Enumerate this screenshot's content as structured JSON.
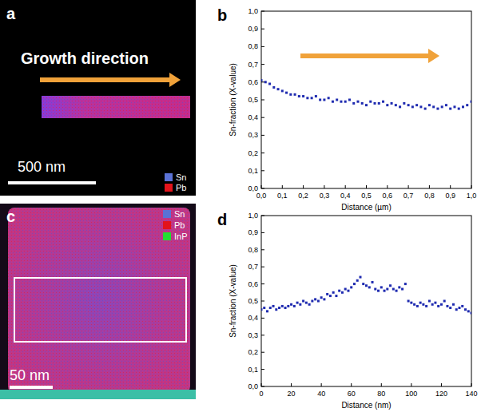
{
  "chart_data": [
    {
      "type": "scatter",
      "panel_label": "b",
      "x_label": "Distance (µm)",
      "y_label": "Sn-fraction (X-value)",
      "color": "#1f2bb0",
      "marker": "square",
      "x": [
        0,
        0.02,
        0.04,
        0.06,
        0.08,
        0.1,
        0.12,
        0.14,
        0.16,
        0.18,
        0.2,
        0.22,
        0.24,
        0.26,
        0.28,
        0.3,
        0.32,
        0.34,
        0.36,
        0.38,
        0.4,
        0.42,
        0.44,
        0.46,
        0.48,
        0.5,
        0.52,
        0.54,
        0.56,
        0.58,
        0.6,
        0.62,
        0.64,
        0.66,
        0.68,
        0.7,
        0.72,
        0.74,
        0.76,
        0.78,
        0.8,
        0.82,
        0.84,
        0.86,
        0.88,
        0.9,
        0.92,
        0.94,
        0.96,
        0.98,
        1.0
      ],
      "values": [
        0.61,
        0.6,
        0.59,
        0.57,
        0.56,
        0.55,
        0.54,
        0.53,
        0.53,
        0.52,
        0.52,
        0.51,
        0.51,
        0.52,
        0.5,
        0.5,
        0.51,
        0.49,
        0.5,
        0.49,
        0.49,
        0.5,
        0.48,
        0.49,
        0.48,
        0.47,
        0.49,
        0.48,
        0.48,
        0.49,
        0.47,
        0.48,
        0.47,
        0.46,
        0.48,
        0.47,
        0.46,
        0.47,
        0.46,
        0.45,
        0.47,
        0.46,
        0.45,
        0.46,
        0.47,
        0.45,
        0.46,
        0.45,
        0.46,
        0.47,
        0.49
      ],
      "xlim": [
        0,
        1
      ],
      "ylim": [
        0,
        1
      ],
      "xticks": [
        {
          "value": 0,
          "label": "0,0"
        },
        {
          "value": 0.1,
          "label": "0,1"
        },
        {
          "value": 0.2,
          "label": "0,2"
        },
        {
          "value": 0.3,
          "label": "0,3"
        },
        {
          "value": 0.4,
          "label": "0,4"
        },
        {
          "value": 0.5,
          "label": "0,5"
        },
        {
          "value": 0.6,
          "label": "0,6"
        },
        {
          "value": 0.7,
          "label": "0,7"
        },
        {
          "value": 0.8,
          "label": "0,8"
        },
        {
          "value": 0.9,
          "label": "0,9"
        },
        {
          "value": 1,
          "label": "1,0"
        }
      ],
      "yticks": [
        {
          "value": 0,
          "label": "0,0"
        },
        {
          "value": 0.1,
          "label": "0,1"
        },
        {
          "value": 0.2,
          "label": "0,2"
        },
        {
          "value": 0.3,
          "label": "0,3"
        },
        {
          "value": 0.4,
          "label": "0,4"
        },
        {
          "value": 0.5,
          "label": "0,5"
        },
        {
          "value": 0.6,
          "label": "0,6"
        },
        {
          "value": 0.7,
          "label": "0,7"
        },
        {
          "value": 0.8,
          "label": "0,8"
        },
        {
          "value": 0.9,
          "label": "0,9"
        },
        {
          "value": 1,
          "label": "1,0"
        }
      ]
    },
    {
      "type": "scatter",
      "panel_label": "d",
      "x_label": "Distance (nm)",
      "y_label": "Sn-fraction (X-value)",
      "color": "#1f2bb0",
      "marker": "square",
      "x": [
        0,
        2,
        4,
        6,
        8,
        10,
        12,
        14,
        16,
        18,
        20,
        22,
        24,
        26,
        28,
        30,
        32,
        34,
        36,
        38,
        40,
        42,
        44,
        46,
        48,
        50,
        52,
        54,
        56,
        58,
        60,
        62,
        64,
        66,
        68,
        70,
        72,
        74,
        76,
        78,
        80,
        82,
        84,
        86,
        88,
        90,
        92,
        94,
        96,
        98,
        100,
        102,
        104,
        106,
        108,
        110,
        112,
        114,
        116,
        118,
        120,
        122,
        124,
        126,
        128,
        130,
        132,
        134,
        136,
        138,
        140
      ],
      "values": [
        0.45,
        0.46,
        0.44,
        0.46,
        0.47,
        0.45,
        0.46,
        0.47,
        0.46,
        0.47,
        0.48,
        0.47,
        0.49,
        0.48,
        0.5,
        0.49,
        0.48,
        0.5,
        0.51,
        0.5,
        0.52,
        0.51,
        0.54,
        0.53,
        0.55,
        0.53,
        0.56,
        0.55,
        0.57,
        0.56,
        0.58,
        0.6,
        0.62,
        0.64,
        0.6,
        0.59,
        0.58,
        0.61,
        0.57,
        0.56,
        0.58,
        0.56,
        0.57,
        0.59,
        0.57,
        0.56,
        0.58,
        0.57,
        0.6,
        0.5,
        0.49,
        0.48,
        0.47,
        0.49,
        0.48,
        0.47,
        0.5,
        0.48,
        0.49,
        0.47,
        0.48,
        0.5,
        0.47,
        0.46,
        0.48,
        0.45,
        0.46,
        0.47,
        0.45,
        0.44,
        0.43
      ],
      "xlim": [
        0,
        140
      ],
      "ylim": [
        0,
        1
      ],
      "xticks": [
        0,
        20,
        40,
        60,
        80,
        100,
        120,
        140
      ],
      "yticks": [
        {
          "value": 0,
          "label": "0,0"
        },
        {
          "value": 0.1,
          "label": "0,1"
        },
        {
          "value": 0.2,
          "label": "0,2"
        },
        {
          "value": 0.3,
          "label": "0,3"
        },
        {
          "value": 0.4,
          "label": "0,4"
        },
        {
          "value": 0.5,
          "label": "0,5"
        },
        {
          "value": 0.6,
          "label": "0,6"
        },
        {
          "value": 0.7,
          "label": "0,7"
        },
        {
          "value": 0.8,
          "label": "0,8"
        },
        {
          "value": 0.9,
          "label": "0,9"
        },
        {
          "value": 1,
          "label": "1,0"
        }
      ]
    }
  ],
  "maps": [
    {
      "panel_label": "a",
      "title": "Growth direction",
      "scale_bar": "500 nm",
      "legend": [
        {
          "name": "Sn",
          "color": "#5a72d6"
        },
        {
          "name": "Pb",
          "color": "#e3131b"
        }
      ]
    },
    {
      "panel_label": "c",
      "scale_bar": "50 nm",
      "legend": [
        {
          "name": "Sn",
          "color": "#5a72d6"
        },
        {
          "name": "Pb",
          "color": "#e3131b"
        },
        {
          "name": "InP",
          "color": "#22dd33"
        }
      ]
    }
  ]
}
